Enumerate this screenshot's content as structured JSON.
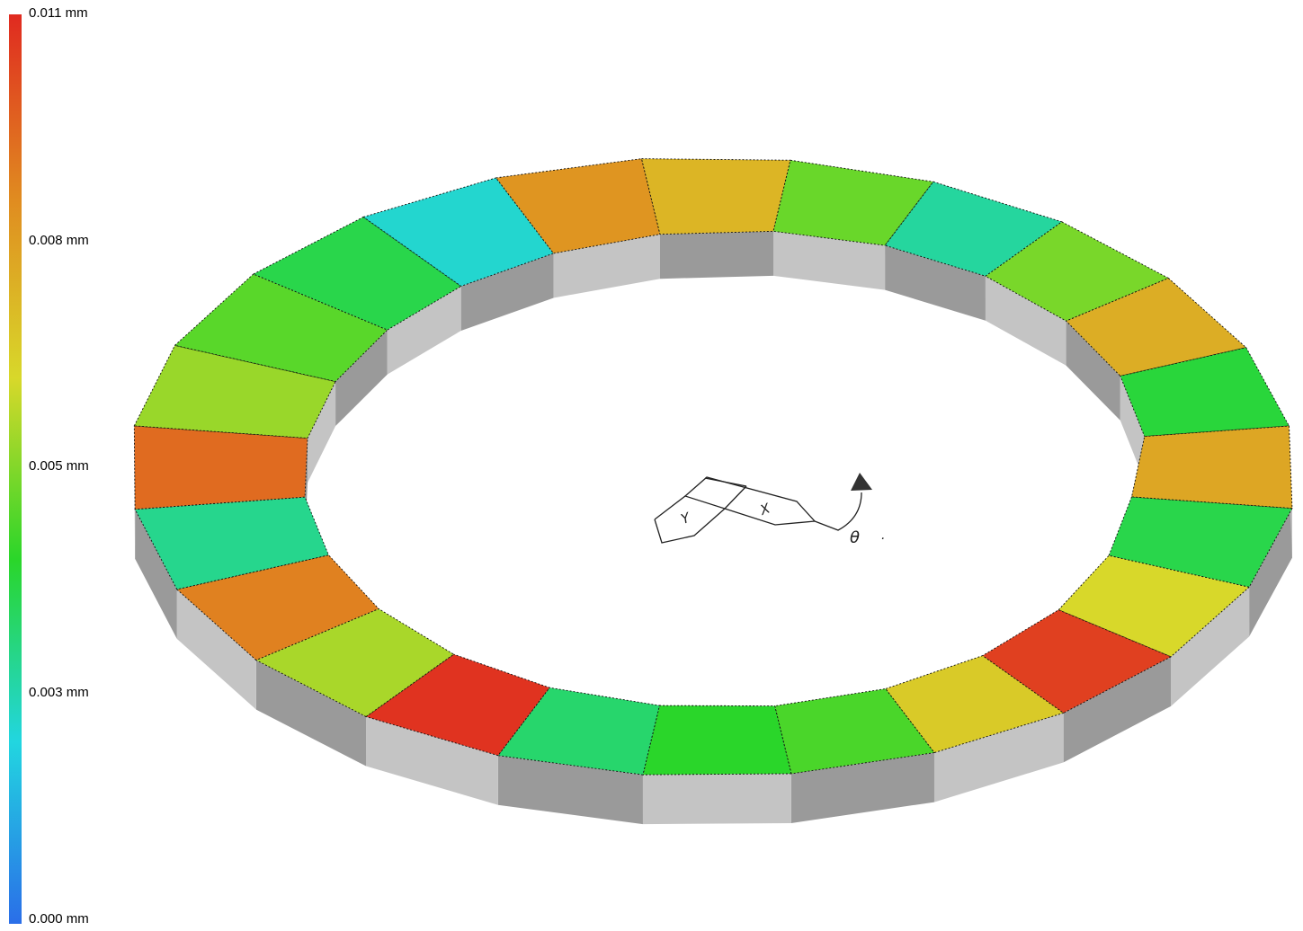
{
  "legend": {
    "ticks": [
      {
        "label": "0.011 mm",
        "value": 0.011
      },
      {
        "label": "0.008 mm",
        "value": 0.008
      },
      {
        "label": "0.005 mm",
        "value": 0.005
      },
      {
        "label": "0.003 mm",
        "value": 0.003
      },
      {
        "label": "0.000 mm",
        "value": 0.0
      }
    ],
    "colors": [
      "#2a6ee8",
      "#22d6e0",
      "#2ad62a",
      "#d8d82a",
      "#e08a20",
      "#e02a20"
    ]
  },
  "triad": {
    "x_label": "X",
    "y_label": "Y",
    "theta_label": "θ",
    "dot": "."
  },
  "part": {
    "side_light": "#c4c4c4",
    "side_dark": "#9a9a9a",
    "segments": [
      {
        "d": 4.0
      },
      {
        "d": 6.6
      },
      {
        "d": 10.5
      },
      {
        "d": 7.0
      },
      {
        "d": 4.8
      },
      {
        "d": 4.4
      },
      {
        "d": 3.6
      },
      {
        "d": 10.8
      },
      {
        "d": 6.0
      },
      {
        "d": 9.0
      },
      {
        "d": 3.2
      },
      {
        "d": 9.5
      },
      {
        "d": 5.8
      },
      {
        "d": 5.0
      },
      {
        "d": 4.0
      },
      {
        "d": 2.4
      },
      {
        "d": 8.5
      },
      {
        "d": 7.6
      },
      {
        "d": 5.2
      },
      {
        "d": 3.0
      },
      {
        "d": 5.4
      },
      {
        "d": 7.8
      },
      {
        "d": 4.2
      },
      {
        "d": 8.0
      }
    ]
  }
}
